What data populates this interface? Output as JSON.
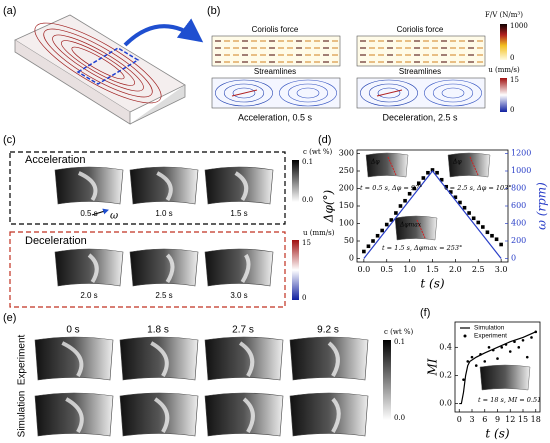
{
  "panels": {
    "a": {
      "label": "(a)"
    },
    "b": {
      "label": "(b)",
      "top_titles": [
        "Coriolis force",
        "Coriolis force"
      ],
      "bottom_titles": [
        "Streamlines",
        "Streamlines"
      ],
      "captions": [
        "Acceleration, 0.5 s",
        "Deceleration, 2.5 s"
      ],
      "colorbar_force": {
        "title": "F/V (N/m³)",
        "max": "1000",
        "min": "0"
      },
      "colorbar_u": {
        "title": "u (mm/s)",
        "max": "15",
        "min": "0"
      }
    },
    "c": {
      "label": "(c)",
      "groups": [
        "Acceleration",
        "Deceleration"
      ],
      "omega": "ω",
      "times": [
        "0.5 s",
        "1.0 s",
        "1.5 s",
        "2.0 s",
        "2.5 s",
        "3.0 s"
      ],
      "colorbar_c": {
        "title": "c (wt %)",
        "max": "0.1",
        "min": "0.0"
      },
      "colorbar_u": {
        "title": "u (mm/s)",
        "max": "15",
        "min": "0"
      }
    },
    "d": {
      "label": "(d)"
    },
    "e": {
      "label": "(e)",
      "times": [
        "0 s",
        "1.8 s",
        "2.7 s",
        "9.2 s"
      ],
      "rows": [
        "Experiment",
        "Simulation"
      ],
      "colorbar_c": {
        "title": "c (wt %)",
        "max": "0.1",
        "min": "0.0"
      }
    },
    "f": {
      "label": "(f)"
    }
  },
  "chart_data": [
    {
      "type": "scatter",
      "xlabel": "t (s)",
      "ylabel": "Δφ(°)",
      "y2label": "ω (rpm)",
      "xlim": [
        -0.15,
        3.15
      ],
      "ylim": [
        -10,
        310
      ],
      "y2lim": [
        -40,
        1240
      ],
      "xticks": [
        {
          "value": 0,
          "label": "0.0"
        },
        {
          "value": 0.5,
          "label": "0.5"
        },
        {
          "value": 1,
          "label": "1.0"
        },
        {
          "value": 1.5,
          "label": "1.5"
        },
        {
          "value": 2,
          "label": "2.0"
        },
        {
          "value": 2.5,
          "label": "2.5"
        },
        {
          "value": 3,
          "label": "3.0"
        }
      ],
      "yticks": [
        0,
        50,
        100,
        150,
        200,
        250,
        300
      ],
      "y2ticks": [
        0,
        200,
        400,
        600,
        800,
        1000,
        1200
      ],
      "series": [
        {
          "marker": "square",
          "color": "#000000",
          "x": [
            0,
            0.1,
            0.2,
            0.3,
            0.4,
            0.5,
            0.6,
            0.7,
            0.8,
            0.9,
            1.0,
            1.1,
            1.2,
            1.3,
            1.4,
            1.5,
            1.6,
            1.7,
            1.8,
            1.9,
            2.0,
            2.1,
            2.2,
            2.3,
            2.4,
            2.5,
            2.6,
            2.7,
            2.8,
            2.9,
            3.0
          ],
          "values": [
            20,
            35,
            50,
            65,
            80,
            97,
            110,
            130,
            150,
            165,
            185,
            200,
            215,
            230,
            245,
            253,
            245,
            225,
            205,
            190,
            175,
            160,
            145,
            130,
            115,
            103,
            90,
            75,
            65,
            55,
            40
          ]
        },
        {
          "color": "#2a3fc8",
          "axis": "y2",
          "x": [
            0,
            1.5,
            3.0
          ],
          "values": [
            0,
            1000,
            0
          ]
        }
      ],
      "annotations": [
        "t = 0.5 s, Δφ = 97°",
        "t = 2.5 s, Δφ = 103°",
        "t = 1.5 s, Δφmax = 253°"
      ],
      "inset_labels": [
        "Δφ",
        "Δφ",
        "Δφmax"
      ]
    },
    {
      "type": "line",
      "xlabel": "t (s)",
      "ylabel": "MI",
      "xlim": [
        -1,
        19
      ],
      "ylim": [
        -0.06,
        0.58
      ],
      "xticks": [
        0,
        3,
        6,
        9,
        12,
        15,
        18
      ],
      "yticks": [
        {
          "value": 0,
          "label": "0.0"
        },
        {
          "value": 0.2,
          "label": "0.2"
        },
        {
          "value": 0.4,
          "label": "0.4"
        }
      ],
      "series": [
        {
          "name": "Simulation",
          "color": "#000000",
          "x": [
            0,
            0.5,
            1,
            1.5,
            2,
            2.5,
            3,
            4,
            6,
            9,
            12,
            15,
            18
          ],
          "values": [
            0,
            0,
            0.08,
            0.2,
            0.27,
            0.3,
            0.31,
            0.33,
            0.36,
            0.4,
            0.44,
            0.47,
            0.51
          ]
        },
        {
          "name": "Experiment",
          "marker": "dot",
          "color": "#000000",
          "x": [
            1,
            2,
            3,
            4,
            5,
            6,
            7,
            8,
            9,
            10,
            11,
            12,
            13,
            14,
            15,
            16,
            17,
            18
          ],
          "values": [
            0.17,
            0.3,
            0.33,
            0.27,
            0.35,
            0.3,
            0.4,
            0.38,
            0.32,
            0.4,
            0.42,
            0.37,
            0.44,
            0.4,
            0.45,
            0.33,
            0.47,
            0.51
          ]
        }
      ],
      "annotations": [
        "t = 18 s, MI = 0.51"
      ]
    }
  ]
}
